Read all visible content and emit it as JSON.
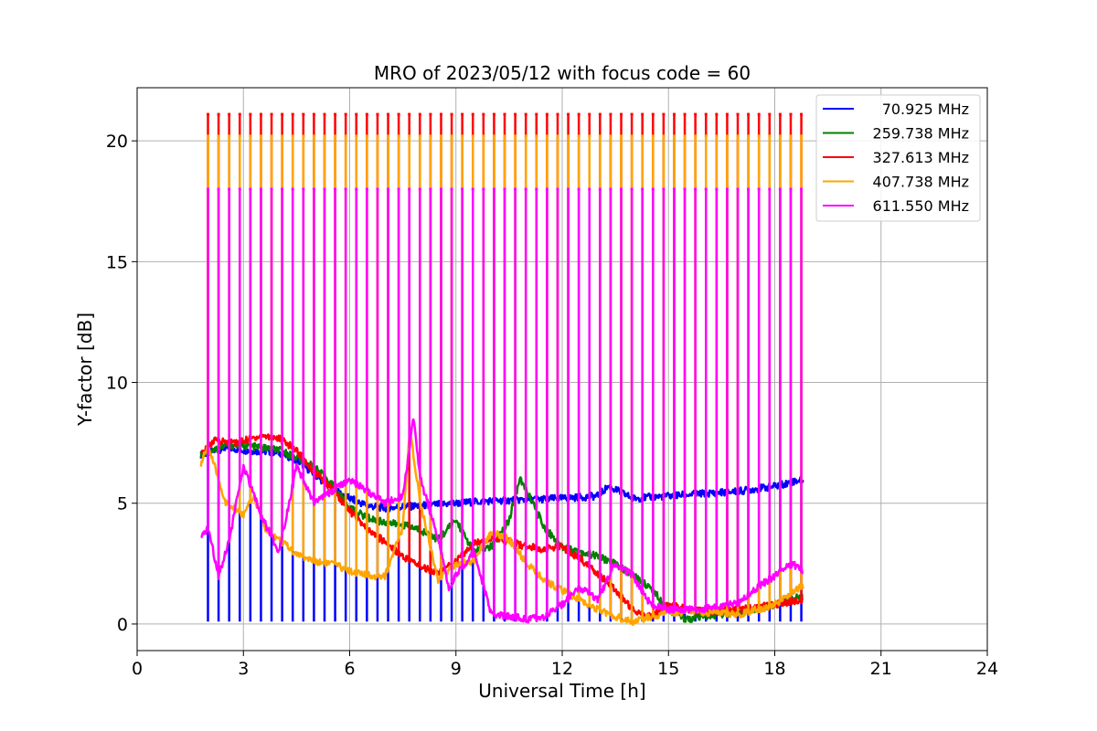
{
  "chart_data": {
    "type": "line",
    "title": "MRO of 2023/05/12 with focus code = 60",
    "xlabel": "Universal Time [h]",
    "ylabel": "Y-factor [dB]",
    "xlim": [
      0,
      24
    ],
    "ylim": [
      -1.1,
      22.2
    ],
    "xticks": [
      0,
      3,
      6,
      9,
      12,
      15,
      18,
      21,
      24
    ],
    "yticks": [
      0,
      5,
      10,
      15,
      20
    ],
    "xtick_labels": [
      "0",
      "3",
      "6",
      "9",
      "12",
      "15",
      "18",
      "21",
      "24"
    ],
    "ytick_labels": [
      "0",
      "5",
      "10",
      "15",
      "20"
    ],
    "grid": true,
    "legend_position": "top-right",
    "pulses": {
      "start": 2.0,
      "end": 18.75,
      "count": 57
    },
    "series": [
      {
        "name": "70.925 MHz",
        "color": "#0000ff",
        "pulse_low": 0.1,
        "x": [
          1.8,
          2.5,
          3.0,
          4.0,
          4.5,
          5.0,
          5.5,
          6.0,
          6.5,
          7.0,
          8.0,
          9.0,
          10.0,
          11.0,
          12.0,
          13.0,
          13.3,
          14.0,
          15.0,
          16.0,
          17.0,
          18.0,
          18.8
        ],
        "y": [
          7.0,
          7.3,
          7.2,
          7.1,
          6.8,
          6.2,
          5.6,
          5.2,
          4.9,
          4.8,
          4.9,
          5.0,
          5.1,
          5.15,
          5.2,
          5.3,
          5.7,
          5.2,
          5.3,
          5.4,
          5.5,
          5.7,
          6.0
        ]
      },
      {
        "name": "259.738 MHz",
        "color": "#008000",
        "pulse_low": null,
        "x": [
          1.8,
          2.5,
          3.0,
          4.0,
          4.5,
          5.0,
          5.5,
          6.0,
          6.5,
          7.0,
          7.5,
          8.0,
          8.5,
          9.0,
          9.5,
          10.0,
          10.5,
          10.8,
          11.0,
          11.5,
          12.0,
          12.5,
          13.0,
          13.5,
          14.0,
          14.5,
          15.0,
          15.5,
          16.0,
          17.0,
          18.0,
          18.8
        ],
        "y": [
          7.0,
          7.4,
          7.4,
          7.2,
          6.9,
          6.5,
          5.8,
          4.8,
          4.4,
          4.2,
          4.1,
          3.9,
          3.5,
          4.3,
          3.0,
          3.2,
          4.3,
          6.0,
          5.5,
          4.0,
          3.2,
          3.0,
          2.8,
          2.5,
          2.0,
          1.5,
          0.6,
          0.2,
          0.3,
          0.5,
          0.8,
          1.2
        ]
      },
      {
        "name": "327.613 MHz",
        "color": "#ff0000",
        "pulse_low": null,
        "pulse_high": 21.1,
        "x": [
          1.8,
          2.2,
          2.8,
          3.5,
          4.0,
          4.5,
          5.0,
          5.5,
          6.0,
          6.5,
          7.0,
          7.5,
          8.0,
          8.5,
          9.0,
          9.5,
          10.0,
          10.5,
          11.0,
          11.5,
          12.0,
          12.5,
          13.0,
          13.5,
          14.0,
          14.5,
          15.0,
          16.0,
          17.0,
          18.0,
          18.8
        ],
        "y": [
          7.0,
          7.6,
          7.5,
          7.8,
          7.7,
          7.2,
          6.3,
          5.6,
          4.7,
          3.9,
          3.4,
          2.8,
          2.4,
          2.1,
          2.6,
          3.3,
          3.6,
          3.4,
          3.2,
          3.1,
          3.2,
          2.7,
          2.1,
          1.4,
          0.6,
          0.3,
          0.8,
          0.5,
          0.6,
          0.8,
          1.0
        ]
      },
      {
        "name": "407.738 MHz",
        "color": "#ffa500",
        "pulse_low": null,
        "pulse_high": 20.2,
        "x": [
          1.8,
          2.0,
          2.5,
          3.0,
          3.3,
          3.6,
          4.0,
          4.5,
          5.0,
          5.5,
          6.0,
          6.5,
          7.0,
          7.5,
          7.7,
          8.0,
          8.5,
          9.0,
          9.5,
          10.0,
          10.5,
          11.0,
          11.5,
          12.0,
          12.5,
          13.0,
          13.5,
          14.0,
          14.5,
          15.0,
          16.0,
          17.0,
          18.0,
          18.8
        ],
        "y": [
          6.6,
          7.4,
          5.0,
          4.5,
          5.3,
          4.0,
          3.5,
          2.9,
          2.6,
          2.5,
          2.2,
          2.0,
          2.0,
          4.0,
          8.0,
          5.0,
          1.8,
          2.5,
          2.6,
          3.8,
          3.5,
          2.5,
          1.8,
          1.4,
          1.0,
          0.6,
          0.3,
          0.1,
          0.3,
          0.5,
          0.5,
          0.4,
          0.8,
          1.6
        ]
      },
      {
        "name": "611.550 MHz",
        "color": "#ff00ff",
        "pulse_low": null,
        "pulse_high": 18.0,
        "x": [
          1.8,
          2.0,
          2.3,
          2.6,
          3.0,
          3.5,
          4.0,
          4.5,
          5.0,
          5.5,
          6.0,
          6.5,
          7.0,
          7.5,
          7.8,
          8.0,
          8.3,
          8.5,
          8.8,
          9.0,
          9.5,
          10.0,
          10.5,
          11.0,
          11.5,
          12.0,
          12.5,
          13.0,
          13.5,
          14.0,
          14.5,
          15.0,
          16.0,
          17.0,
          17.5,
          18.0,
          18.5,
          18.8
        ],
        "y": [
          3.5,
          4.0,
          2.0,
          3.5,
          6.5,
          4.5,
          3.0,
          6.5,
          5.0,
          5.5,
          6.0,
          5.5,
          5.0,
          5.3,
          8.5,
          6.0,
          4.5,
          3.5,
          1.5,
          2.0,
          3.0,
          0.4,
          0.3,
          0.2,
          0.3,
          0.8,
          1.5,
          1.0,
          2.5,
          2.0,
          0.8,
          0.6,
          0.6,
          0.9,
          1.5,
          2.0,
          2.5,
          2.2
        ]
      }
    ]
  }
}
